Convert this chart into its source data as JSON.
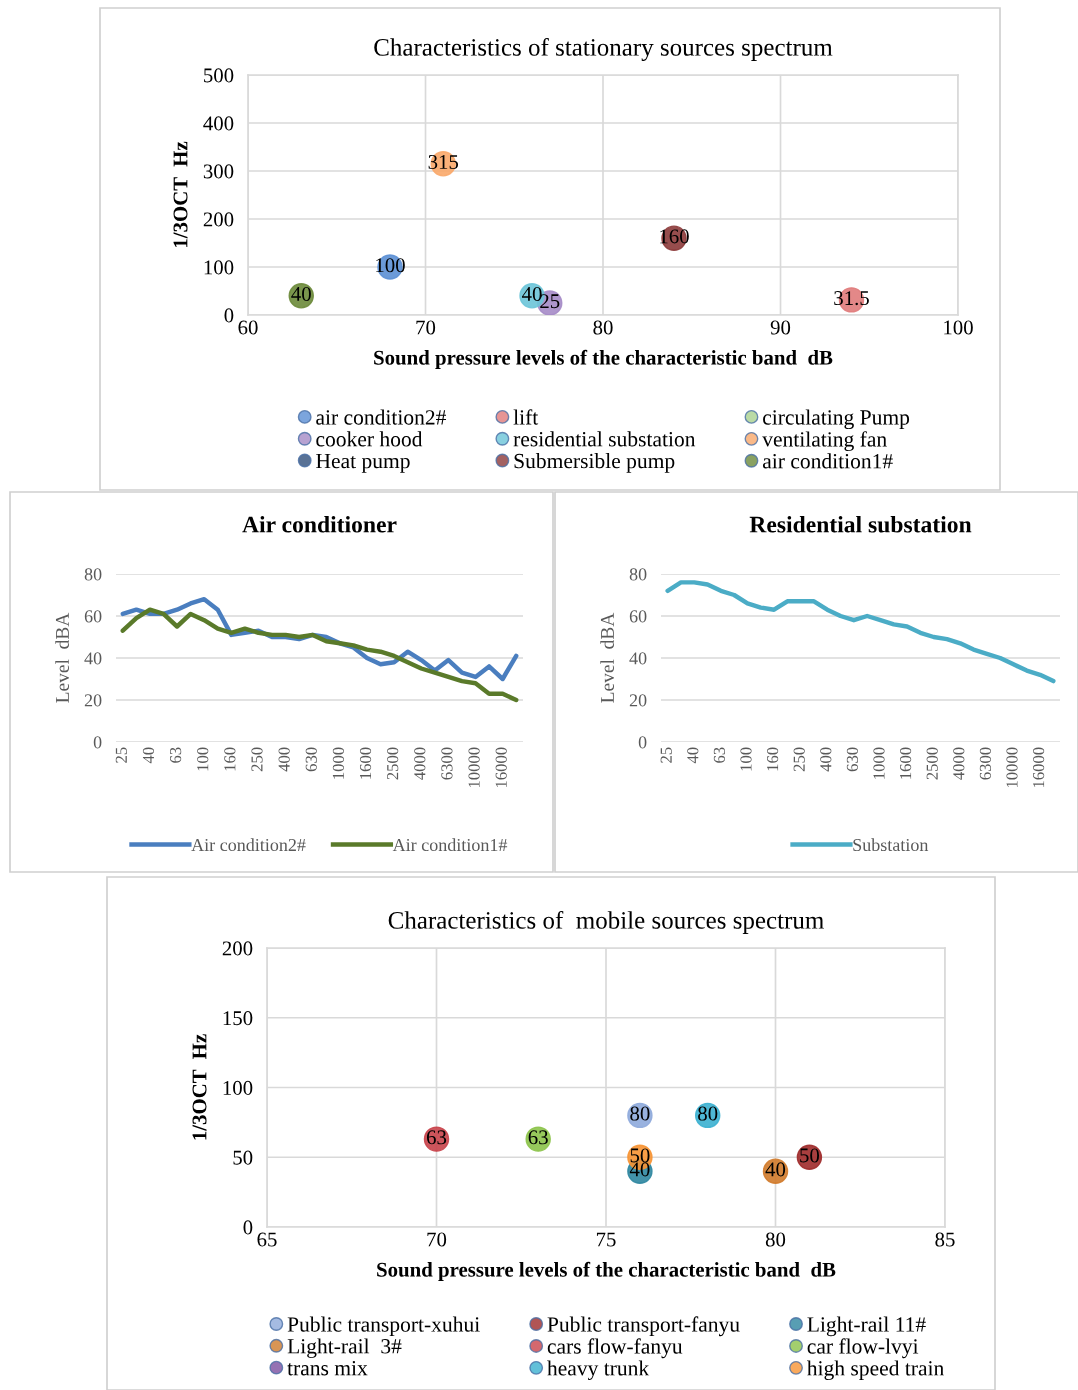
{
  "chart_data": [
    {
      "type": "scatter",
      "title": "Characteristics of stationary sources spectrum",
      "xlabel": "Sound pressure levels of the characteristic band  dB",
      "ylabel": "1/3OCT  Hz",
      "xlim": [
        60,
        100
      ],
      "xticks": [
        60,
        70,
        80,
        90,
        100
      ],
      "ylim": [
        0,
        500
      ],
      "yticks": [
        0,
        100,
        200,
        300,
        400,
        500
      ],
      "grid": true,
      "legend": "bottom",
      "data_labels": true,
      "marker": "circle",
      "series": [
        {
          "name": "air condition2#",
          "color": "#5b8fd4",
          "x": [
            68
          ],
          "values": [
            100
          ]
        },
        {
          "name": "lift",
          "color": "#e07b7b",
          "x": [
            94
          ],
          "values": [
            31.5
          ]
        },
        {
          "name": "circulating Pump",
          "color": "#a9d18e",
          "x": [
            null
          ],
          "values": [
            null
          ]
        },
        {
          "name": "cooker hood",
          "color": "#a58bc6",
          "x": [
            77
          ],
          "values": [
            25
          ]
        },
        {
          "name": "residential substation",
          "color": "#6cc4d8",
          "x": [
            76
          ],
          "values": [
            40
          ]
        },
        {
          "name": "ventilating fan",
          "color": "#f9a86a",
          "x": [
            71
          ],
          "values": [
            315
          ]
        },
        {
          "name": "Heat pump",
          "color": "#2f4f7a",
          "x": [
            null
          ],
          "values": [
            null
          ]
        },
        {
          "name": "Submersible pump",
          "color": "#8c3a3a",
          "x": [
            84
          ],
          "values": [
            160
          ]
        },
        {
          "name": "air condition1#",
          "color": "#6b8a3a",
          "x": [
            63
          ],
          "values": [
            40
          ]
        }
      ]
    },
    {
      "type": "line",
      "title": "Air conditioner",
      "ylabel": "Level  dBA",
      "ylim": [
        0,
        80
      ],
      "yticks": [
        0,
        20,
        40,
        60,
        80
      ],
      "grid": "y",
      "legend": "bottom",
      "categories": [
        "25",
        null,
        "40",
        null,
        "63",
        null,
        "100",
        null,
        "160",
        null,
        "250",
        null,
        "400",
        null,
        "630",
        null,
        "1000",
        null,
        "1600",
        null,
        "2500",
        null,
        "4000",
        null,
        "6300",
        null,
        "10000",
        null,
        "16000",
        null
      ],
      "series": [
        {
          "name": "Air condition2#",
          "color": "#4a7ebf",
          "values": [
            61,
            63,
            61,
            61,
            63,
            66,
            68,
            63,
            51,
            52,
            53,
            50,
            50,
            49,
            51,
            50,
            47,
            45,
            40,
            37,
            38,
            43,
            39,
            34,
            39,
            33,
            31,
            36,
            30,
            41
          ]
        },
        {
          "name": "Air condition1#",
          "color": "#5a7a2a",
          "values": [
            53,
            59,
            63,
            61,
            55,
            61,
            58,
            54,
            52,
            54,
            52,
            51,
            51,
            50,
            51,
            48,
            47,
            46,
            44,
            43,
            41,
            38,
            35,
            33,
            31,
            29,
            28,
            23,
            23,
            20
          ]
        }
      ]
    },
    {
      "type": "line",
      "title": "Residential substation",
      "ylabel": "Level  dBA",
      "ylim": [
        0,
        80
      ],
      "yticks": [
        0,
        20,
        40,
        60,
        80
      ],
      "grid": "y",
      "legend": "bottom",
      "categories": [
        "25",
        null,
        "40",
        null,
        "63",
        null,
        "100",
        null,
        "160",
        null,
        "250",
        null,
        "400",
        null,
        "630",
        null,
        "1000",
        null,
        "1600",
        null,
        "2500",
        null,
        "4000",
        null,
        "6300",
        null,
        "10000",
        null,
        "16000",
        null
      ],
      "series": [
        {
          "name": "Substation",
          "color": "#4bacc6",
          "values": [
            72,
            76,
            76,
            75,
            72,
            70,
            66,
            64,
            63,
            67,
            67,
            67,
            63,
            60,
            58,
            60,
            58,
            56,
            55,
            52,
            50,
            49,
            47,
            44,
            42,
            40,
            37,
            34,
            32,
            29
          ]
        }
      ]
    },
    {
      "type": "scatter",
      "title": "Characteristics of  mobile sources spectrum",
      "xlabel": "Sound pressure levels of the characteristic band  dB",
      "ylabel": "1/3OCT  Hz",
      "xlim": [
        65,
        85
      ],
      "xticks": [
        65,
        70,
        75,
        80,
        85
      ],
      "ylim": [
        0,
        200
      ],
      "yticks": [
        0,
        50,
        100,
        150,
        200
      ],
      "grid": true,
      "legend": "bottom",
      "data_labels": true,
      "marker": "circle",
      "series": [
        {
          "name": "Public transport-xuhui",
          "color": "#8eaadb",
          "x": [
            76
          ],
          "values": [
            80
          ]
        },
        {
          "name": "Public transport-fanyu",
          "color": "#9e2a2a",
          "x": [
            81
          ],
          "values": [
            50
          ]
        },
        {
          "name": "Light-rail 11#",
          "color": "#2e86a0",
          "x": [
            76
          ],
          "values": [
            40
          ]
        },
        {
          "name": "Light-rail  3#",
          "color": "#d07a2a",
          "x": [
            80
          ],
          "values": [
            40
          ]
        },
        {
          "name": "cars flow-fanyu",
          "color": "#c8424a",
          "x": [
            70
          ],
          "values": [
            63
          ]
        },
        {
          "name": "car flow-lvyi",
          "color": "#8cc34a",
          "x": [
            73
          ],
          "values": [
            63
          ]
        },
        {
          "name": "trans mix",
          "color": "#7a4fa0",
          "x": [
            null
          ],
          "values": [
            null
          ]
        },
        {
          "name": "heavy trunk",
          "color": "#3bb0d0",
          "x": [
            78
          ],
          "values": [
            80
          ]
        },
        {
          "name": "high speed train",
          "color": "#f79433",
          "x": [
            76
          ],
          "values": [
            50
          ]
        }
      ]
    }
  ]
}
